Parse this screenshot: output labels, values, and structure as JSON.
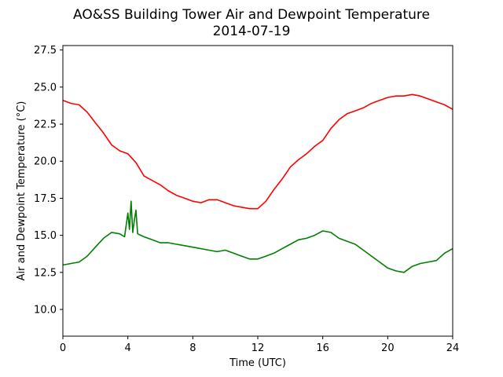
{
  "chart_data": {
    "type": "line",
    "title": "AO&SS Building Tower Air and Dewpoint Temperature",
    "subtitle": "2014-07-19",
    "xlabel": "Time (UTC)",
    "ylabel": "Air and Dewpoint Temperature (°C)",
    "xlim": [
      0,
      24
    ],
    "ylim": [
      8.2,
      27.8
    ],
    "xticks": [
      0,
      4,
      8,
      12,
      16,
      20,
      24
    ],
    "xtick_labels": [
      "0",
      "4",
      "8",
      "12",
      "16",
      "20",
      "24"
    ],
    "yticks": [
      10.0,
      12.5,
      15.0,
      17.5,
      20.0,
      22.5,
      25.0,
      27.5
    ],
    "ytick_labels": [
      "10.0",
      "12.5",
      "15.0",
      "17.5",
      "20.0",
      "22.5",
      "25.0",
      "27.5"
    ],
    "grid": false,
    "legend": "none",
    "series": [
      {
        "color": "#ff0000",
        "x": [
          0,
          0.5,
          1.0,
          1.5,
          2.0,
          2.5,
          3.0,
          3.5,
          4.0,
          4.5,
          5.0,
          5.5,
          6.0,
          6.5,
          7.0,
          7.5,
          8.0,
          8.5,
          9.0,
          9.5,
          10.0,
          10.5,
          11.0,
          11.5,
          12.0,
          12.5,
          13.0,
          13.5,
          14.0,
          14.5,
          15.0,
          15.5,
          16.0,
          16.5,
          17.0,
          17.5,
          18.0,
          18.5,
          19.0,
          19.5,
          20.0,
          20.5,
          21.0,
          21.5,
          22.0,
          22.5,
          23.0,
          23.5,
          24.0
        ],
        "values": [
          24.1,
          23.9,
          23.8,
          23.3,
          22.6,
          21.9,
          21.1,
          20.7,
          20.5,
          19.9,
          19.0,
          18.7,
          18.4,
          18.0,
          17.7,
          17.5,
          17.3,
          17.2,
          17.4,
          17.4,
          17.2,
          17.0,
          16.9,
          16.8,
          16.8,
          17.3,
          18.1,
          18.8,
          19.6,
          20.1,
          20.5,
          21.0,
          21.4,
          22.2,
          22.8,
          23.2,
          23.4,
          23.6,
          23.9,
          24.1,
          24.3,
          24.4,
          24.4,
          24.5,
          24.4,
          24.2,
          24.0,
          23.8,
          23.5
        ]
      },
      {
        "color": "#008000",
        "x": [
          0,
          0.5,
          1.0,
          1.5,
          2.0,
          2.5,
          3.0,
          3.5,
          3.8,
          4.0,
          4.1,
          4.2,
          4.3,
          4.4,
          4.5,
          4.6,
          4.8,
          5.0,
          5.5,
          6.0,
          6.5,
          7.0,
          7.5,
          8.0,
          8.5,
          9.0,
          9.5,
          10.0,
          10.5,
          11.0,
          11.5,
          12.0,
          12.5,
          13.0,
          13.5,
          14.0,
          14.5,
          15.0,
          15.5,
          16.0,
          16.5,
          17.0,
          17.5,
          18.0,
          18.5,
          19.0,
          19.5,
          20.0,
          20.5,
          21.0,
          21.5,
          22.0,
          22.5,
          23.0,
          23.5,
          24.0
        ],
        "values": [
          13.0,
          13.1,
          13.2,
          13.6,
          14.2,
          14.8,
          15.2,
          15.1,
          14.9,
          16.5,
          15.4,
          17.3,
          15.2,
          16.0,
          16.7,
          15.1,
          15.0,
          14.9,
          14.7,
          14.5,
          14.5,
          14.4,
          14.3,
          14.2,
          14.1,
          14.0,
          13.9,
          14.0,
          13.8,
          13.6,
          13.4,
          13.4,
          13.6,
          13.8,
          14.1,
          14.4,
          14.7,
          14.8,
          15.0,
          15.3,
          15.2,
          14.8,
          14.6,
          14.4,
          14.0,
          13.6,
          13.2,
          12.8,
          12.6,
          12.5,
          12.9,
          13.1,
          13.2,
          13.3,
          13.8,
          14.1
        ]
      }
    ]
  }
}
